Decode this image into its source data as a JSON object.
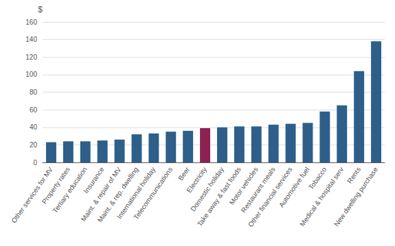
{
  "chart_data": {
    "type": "bar",
    "ylabel": "$",
    "categories": [
      "Other services for MV",
      "Property rates",
      "Tertiary education",
      "Insurance",
      "Maint. & repair of MV",
      "Maint. & rep. dwelling",
      "International holiday",
      "Telecommunications",
      "Beer",
      "Electricity",
      "Domestic holiday",
      "Take away & fast foods",
      "Motor vehicles",
      "Restaurant meals",
      "Other financial services",
      "Automotive fuel",
      "Tobacco",
      "Medical & hospital serv",
      "Rents",
      "New dwelling purchase"
    ],
    "values": [
      23,
      24,
      24,
      25,
      26,
      32,
      33,
      35,
      36,
      39,
      40,
      41,
      41,
      43,
      44,
      45,
      58,
      65,
      104,
      138
    ],
    "colors": [
      "#2E5F8A",
      "#2E5F8A",
      "#2E5F8A",
      "#2E5F8A",
      "#2E5F8A",
      "#2E5F8A",
      "#2E5F8A",
      "#2E5F8A",
      "#2E5F8A",
      "#8B2252",
      "#2E5F8A",
      "#2E5F8A",
      "#2E5F8A",
      "#2E5F8A",
      "#2E5F8A",
      "#2E5F8A",
      "#2E5F8A",
      "#2E5F8A",
      "#2E5F8A",
      "#2E5F8A"
    ],
    "ylim": [
      0,
      160
    ],
    "yticks": [
      0,
      20,
      40,
      60,
      80,
      100,
      120,
      140,
      160
    ],
    "grid": true
  }
}
